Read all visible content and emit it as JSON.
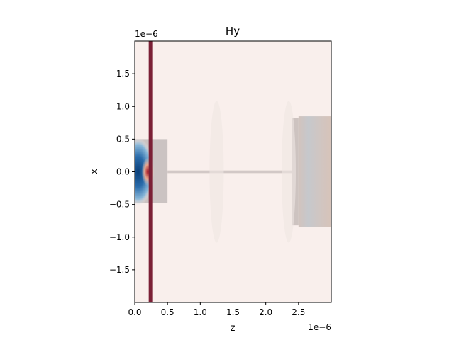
{
  "chart_data": {
    "type": "heatmap",
    "title": "Hy",
    "xlabel": "z",
    "ylabel": "x",
    "x_offset_label": "1e−6",
    "y_offset_label": "1e−6",
    "xlim": [
      0,
      3.0
    ],
    "ylim": [
      -2.0,
      2.0
    ],
    "x_ticks": [
      0.0,
      0.5,
      1.0,
      1.5,
      2.0,
      2.5
    ],
    "x_tick_labels": [
      "0.0",
      "0.5",
      "1.0",
      "1.5",
      "2.0",
      "2.5"
    ],
    "y_ticks": [
      1.5,
      1.0,
      0.5,
      0.0,
      -0.5,
      -1.0,
      -1.5
    ],
    "y_tick_labels": [
      "1.5",
      "1.0",
      "0.5",
      "0.0",
      "−0.5",
      "−1.0",
      "−1.5"
    ],
    "colormap": "RdBu_r (diverging, red-white-blue)",
    "background_color": "#f9efec",
    "source_line": {
      "z": 0.24,
      "color": "#7b2036"
    },
    "regions": [
      {
        "name": "input-waveguide",
        "z": [
          0.0,
          0.5
        ],
        "x": [
          -0.48,
          0.5
        ],
        "color": "#cbc3c2"
      },
      {
        "name": "thin-connecting-waveguide",
        "z": [
          0.5,
          2.4
        ],
        "x": [
          -0.02,
          0.02
        ],
        "color": "#d2c8c6"
      },
      {
        "name": "output-block-left",
        "z": [
          2.4,
          2.5
        ],
        "x": [
          -0.82,
          0.82
        ],
        "color": "#cdc3c0"
      },
      {
        "name": "output-block-right",
        "z": [
          2.5,
          3.0
        ],
        "x": [
          -0.84,
          0.85
        ],
        "color": "#cac6c6"
      }
    ],
    "field_features": [
      {
        "name": "blue-lobe",
        "z_center": 0.05,
        "x_center": 0.0,
        "color": "#2f6aa6"
      },
      {
        "name": "red-core",
        "z_center": 0.2,
        "x_center": 0.0,
        "color": "#b2182b"
      }
    ],
    "grid": false
  }
}
